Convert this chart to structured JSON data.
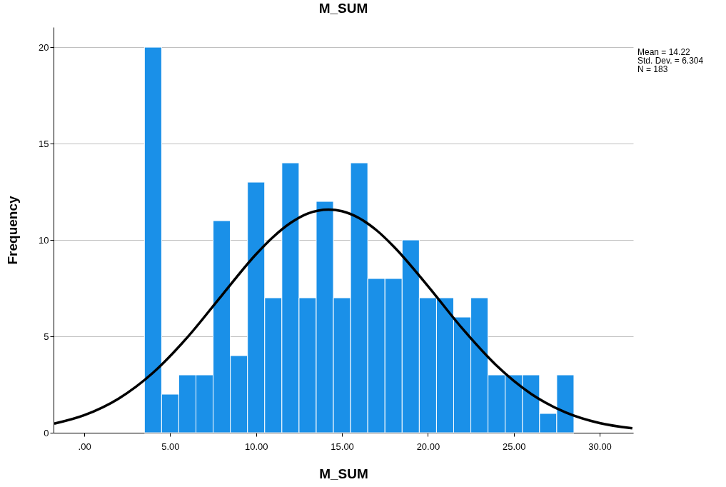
{
  "chart_data": {
    "type": "histogram",
    "title": "M_SUM",
    "xlabel": "M_SUM",
    "ylabel": "Frequency",
    "bins": [
      3.5,
      4.5,
      5.5,
      6.5,
      7.5,
      8.5,
      9.5,
      10.5,
      11.5,
      12.5,
      13.5,
      14.5,
      15.5,
      16.5,
      17.5,
      18.5,
      19.5,
      20.5,
      21.5,
      22.5,
      23.5,
      24.5,
      25.5,
      26.5,
      27.5,
      28.5
    ],
    "values": [
      20,
      2,
      3,
      3,
      11,
      4,
      13,
      7,
      14,
      7,
      12,
      7,
      14,
      8,
      8,
      10,
      7,
      7,
      6,
      7,
      3,
      3,
      3,
      1,
      3
    ],
    "color": "#1a90e8",
    "series": [
      {
        "type": "line",
        "color": "#000000",
        "x": [
          -1.75,
          0,
          2,
          4,
          6,
          8,
          10,
          11,
          12,
          13,
          14.22,
          15,
          16,
          17,
          18,
          20,
          22,
          24,
          26,
          28,
          30,
          31.9
        ],
        "values": [
          0.47,
          0.91,
          1.77,
          3.11,
          4.95,
          7.12,
          9.26,
          10.16,
          10.88,
          11.37,
          11.58,
          11.49,
          11.13,
          10.51,
          9.67,
          7.61,
          5.41,
          3.48,
          2.02,
          1.06,
          0.5,
          0.23
        ]
      }
    ],
    "xlim": [
      -1.79,
      31.95
    ],
    "xticks": [
      {
        "value": 0,
        "label": ".00"
      },
      {
        "value": 5,
        "label": "5.00"
      },
      {
        "value": 10,
        "label": "10.00"
      },
      {
        "value": 15,
        "label": "15.00"
      },
      {
        "value": 20,
        "label": "20.00"
      },
      {
        "value": 25,
        "label": "25.00"
      },
      {
        "value": 30,
        "label": "30.00"
      }
    ],
    "ylim": [
      0,
      21.04
    ],
    "yticks": [
      0,
      5,
      10,
      15,
      20
    ],
    "grid": "y",
    "annotations": [
      "Mean = 14.22",
      "Std. Dev. = 6.304",
      "N = 183"
    ]
  }
}
